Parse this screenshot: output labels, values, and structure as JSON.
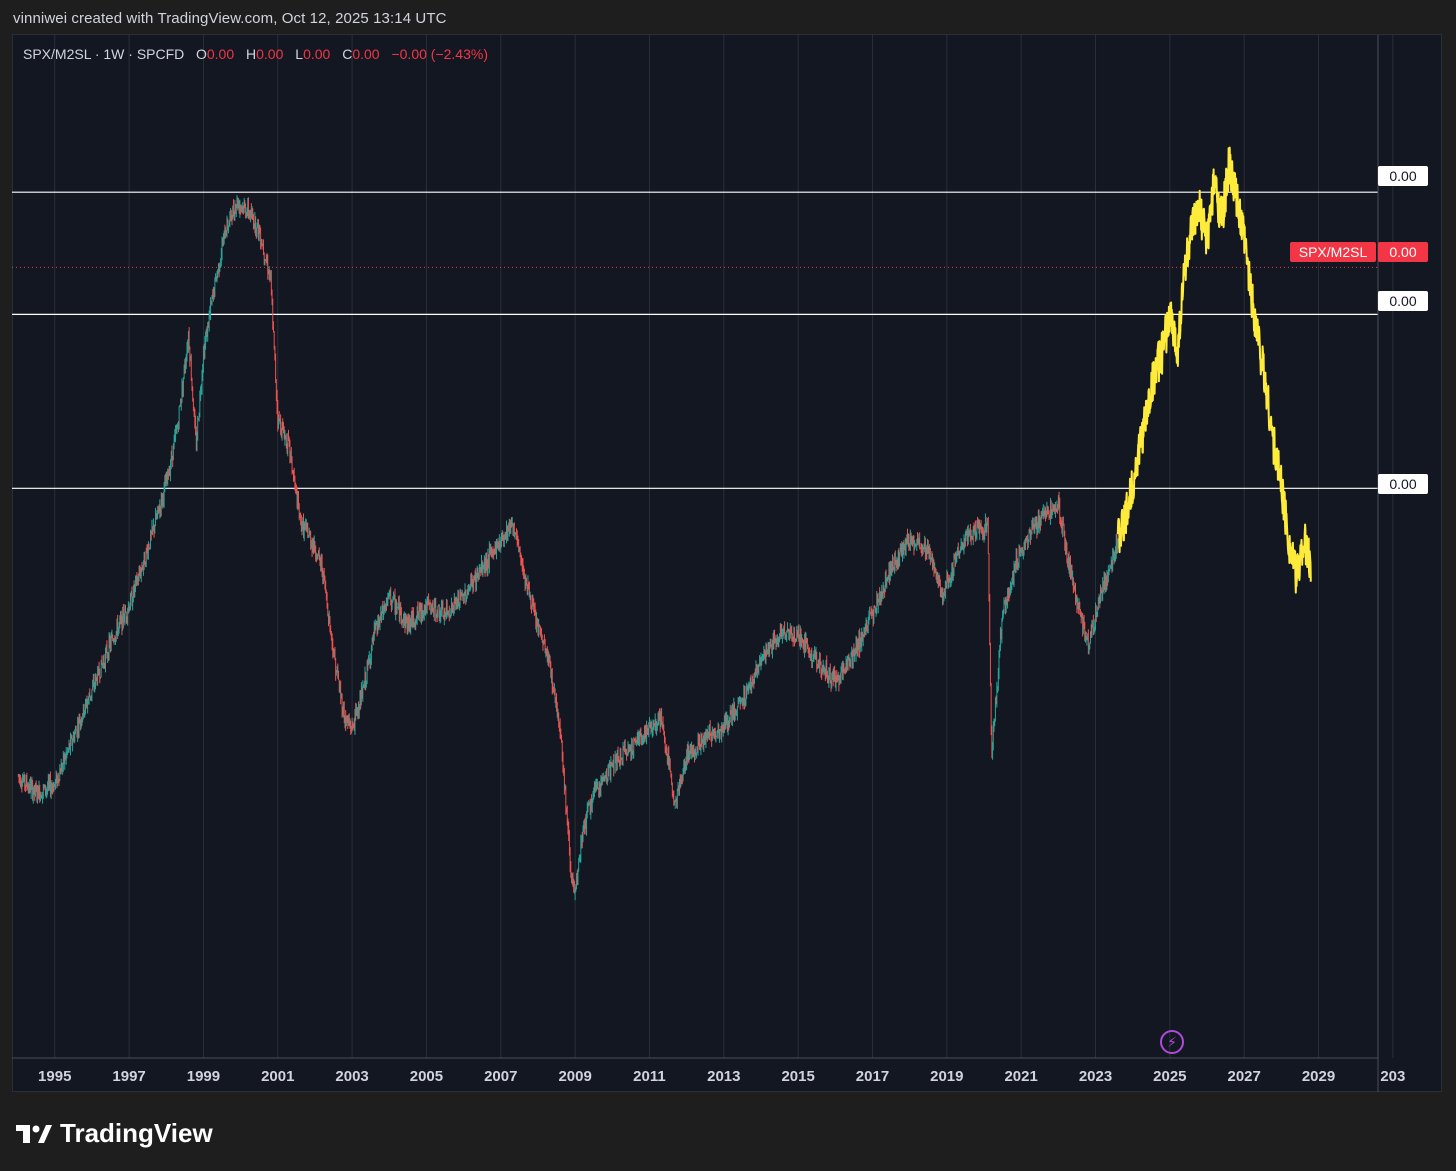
{
  "header": {
    "credit": "vinniwei created with TradingView.com, Oct 12, 2025 13:14 UTC"
  },
  "legend": {
    "symbol": "SPX/M2SL · 1W · SPCFD",
    "open_label": "O",
    "open_value": "0.00",
    "high_label": "H",
    "high_value": "0.00",
    "low_label": "L",
    "low_value": "0.00",
    "close_label": "C",
    "close_value": "0.00",
    "change": "−0.00 (−2.43%)"
  },
  "price_tags": {
    "line_top": "0.00",
    "series_name": "SPX/M2SL",
    "series_value": "0.00",
    "line_mid": "0.00",
    "line_low": "0.00"
  },
  "footer": {
    "brand": "TradingView"
  },
  "colors": {
    "up": "#26a69a",
    "down": "#ef5350",
    "projection": "#ffeb3b",
    "background": "#131722",
    "grid": "#2a2e39"
  },
  "chart_data": {
    "type": "line",
    "title": "SPX/M2SL · 1W · SPCFD",
    "x_ticks": [
      "1995",
      "1997",
      "1999",
      "2001",
      "2003",
      "2005",
      "2007",
      "2009",
      "2011",
      "2013",
      "2015",
      "2017",
      "2019",
      "2021",
      "2023",
      "2025",
      "2027",
      "2029",
      "203"
    ],
    "ylim": [
      0,
      1
    ],
    "y_note": "values shown normalized 0–1; price scale labels display 0.00",
    "horizontal_lines": [
      0.87,
      0.74,
      0.555
    ],
    "current_value_line": 0.79,
    "series": [
      {
        "name": "SPX/M2SL (weekly)",
        "x": [
          1994.0,
          1994.5,
          1995.0,
          1995.5,
          1996.0,
          1996.5,
          1997.0,
          1997.5,
          1998.0,
          1998.3,
          1998.6,
          1998.8,
          1999.0,
          1999.3,
          1999.6,
          1999.9,
          2000.2,
          2000.5,
          2000.8,
          2001.0,
          2001.3,
          2001.6,
          2001.9,
          2002.2,
          2002.5,
          2002.8,
          2003.0,
          2003.3,
          2003.6,
          2004.0,
          2004.5,
          2005.0,
          2005.5,
          2006.0,
          2006.5,
          2007.0,
          2007.3,
          2007.6,
          2007.9,
          2008.3,
          2008.6,
          2008.9,
          2009.0,
          2009.2,
          2009.5,
          2010.0,
          2010.5,
          2011.0,
          2011.3,
          2011.7,
          2012.0,
          2012.5,
          2013.0,
          2013.5,
          2014.0,
          2014.5,
          2015.0,
          2015.5,
          2016.0,
          2016.5,
          2017.0,
          2017.5,
          2018.0,
          2018.5,
          2018.9,
          2019.3,
          2019.8,
          2020.1,
          2020.2,
          2020.5,
          2020.9,
          2021.3,
          2021.7,
          2022.0,
          2022.4,
          2022.8,
          2023.2,
          2023.6,
          2023.9
        ],
        "y": [
          0.25,
          0.23,
          0.24,
          0.29,
          0.34,
          0.39,
          0.43,
          0.49,
          0.56,
          0.62,
          0.72,
          0.6,
          0.7,
          0.77,
          0.83,
          0.86,
          0.85,
          0.83,
          0.78,
          0.63,
          0.6,
          0.52,
          0.5,
          0.47,
          0.38,
          0.31,
          0.3,
          0.34,
          0.4,
          0.44,
          0.41,
          0.43,
          0.42,
          0.44,
          0.47,
          0.5,
          0.52,
          0.47,
          0.42,
          0.37,
          0.3,
          0.14,
          0.12,
          0.19,
          0.23,
          0.26,
          0.28,
          0.3,
          0.31,
          0.22,
          0.27,
          0.29,
          0.3,
          0.33,
          0.37,
          0.4,
          0.4,
          0.37,
          0.35,
          0.38,
          0.42,
          0.47,
          0.5,
          0.49,
          0.44,
          0.49,
          0.51,
          0.52,
          0.27,
          0.42,
          0.48,
          0.51,
          0.53,
          0.54,
          0.45,
          0.39,
          0.45,
          0.5,
          0.53
        ]
      },
      {
        "name": "Projection (yellow)",
        "x": [
          2023.6,
          2023.8,
          2024.0,
          2024.2,
          2024.4,
          2024.6,
          2024.8,
          2025.0,
          2025.2,
          2025.4,
          2025.6,
          2025.8,
          2026.0,
          2026.2,
          2026.4,
          2026.6,
          2026.8,
          2027.0,
          2027.2,
          2027.4,
          2027.6,
          2027.8,
          2028.0,
          2028.2,
          2028.4,
          2028.6,
          2028.8
        ],
        "y": [
          0.5,
          0.52,
          0.56,
          0.6,
          0.64,
          0.68,
          0.7,
          0.74,
          0.7,
          0.79,
          0.83,
          0.85,
          0.82,
          0.88,
          0.84,
          0.9,
          0.86,
          0.82,
          0.76,
          0.71,
          0.66,
          0.6,
          0.56,
          0.5,
          0.46,
          0.5,
          0.47
        ]
      }
    ]
  }
}
